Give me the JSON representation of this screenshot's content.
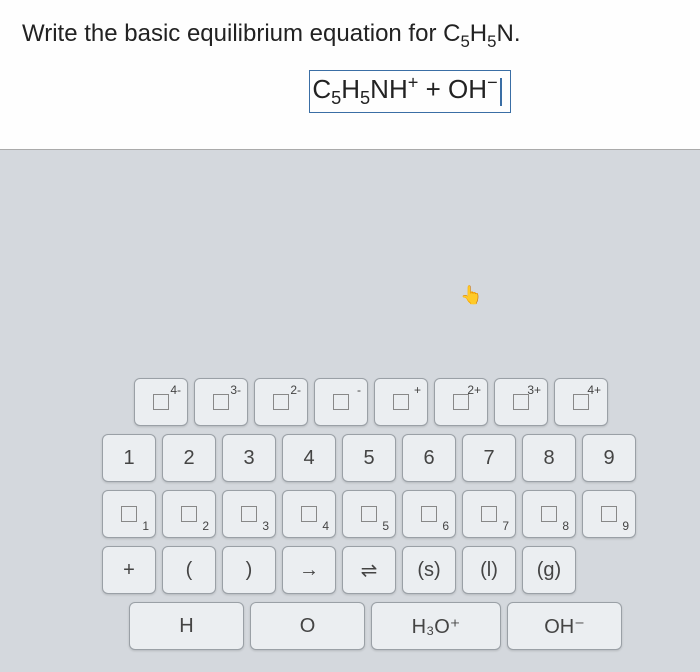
{
  "question": {
    "prompt_prefix": "Write the basic equilibrium equation for ",
    "compound_html": "C<sub>5</sub>H<sub>5</sub>N.",
    "answer_html": "C<sub>5</sub>H<sub>5</sub>NH<sup>+</sup> + OH<sup>−</sup>"
  },
  "cursor_glyph": "👆",
  "keyboard": {
    "row1": [
      {
        "type": "boxsup",
        "sup": "4-"
      },
      {
        "type": "boxsup",
        "sup": "3-"
      },
      {
        "type": "boxsup",
        "sup": "2-"
      },
      {
        "type": "boxsup",
        "sup": "-"
      },
      {
        "type": "boxsup",
        "sup": "+"
      },
      {
        "type": "boxsup",
        "sup": "2+"
      },
      {
        "type": "boxsup",
        "sup": "3+"
      },
      {
        "type": "boxsup",
        "sup": "4+"
      }
    ],
    "row2": [
      "1",
      "2",
      "3",
      "4",
      "5",
      "6",
      "7",
      "8",
      "9"
    ],
    "row3": [
      {
        "type": "boxsub",
        "sub": "1"
      },
      {
        "type": "boxsub",
        "sub": "2"
      },
      {
        "type": "boxsub",
        "sub": "3"
      },
      {
        "type": "boxsub",
        "sub": "4"
      },
      {
        "type": "boxsub",
        "sub": "5"
      },
      {
        "type": "boxsub",
        "sub": "6"
      },
      {
        "type": "boxsub",
        "sub": "7"
      },
      {
        "type": "boxsub",
        "sub": "8"
      },
      {
        "type": "boxsub",
        "sub": "9"
      }
    ],
    "row4": [
      "+",
      "(",
      ")",
      "→",
      "⇌",
      "(s)",
      "(l)",
      "(g)"
    ],
    "row5": [
      {
        "label": "H",
        "wide": true
      },
      {
        "label": "O",
        "wide": true
      },
      {
        "label": "H₃O⁺",
        "wide": true,
        "wider": true
      },
      {
        "label": "OH⁻",
        "wide": true
      }
    ]
  }
}
